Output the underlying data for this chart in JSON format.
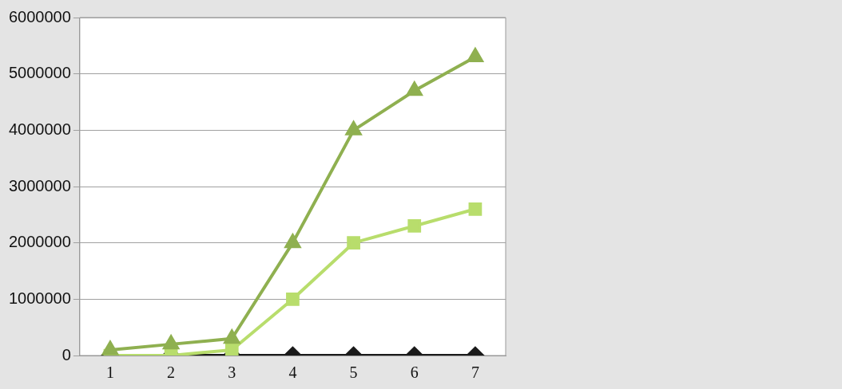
{
  "chart_data": {
    "type": "line",
    "categories": [
      "1",
      "2",
      "3",
      "4",
      "5",
      "6",
      "7"
    ],
    "series": [
      {
        "color": "#1a1a1a",
        "marker": "diamond",
        "values": [
          0,
          0,
          0,
          0,
          0,
          0,
          0
        ]
      },
      {
        "color": "#b8dd6c",
        "marker": "square",
        "values": [
          0,
          0,
          100000,
          1000000,
          2000000,
          2300000,
          2600000
        ]
      },
      {
        "color": "#8fb050",
        "marker": "triangle",
        "values": [
          100000,
          200000,
          300000,
          2000000,
          4000000,
          4700000,
          5300000
        ]
      }
    ],
    "ylim": [
      0,
      6000000
    ],
    "yticks": [
      0,
      1000000,
      2000000,
      3000000,
      4000000,
      5000000,
      6000000
    ],
    "grid": "y",
    "legend": false
  }
}
